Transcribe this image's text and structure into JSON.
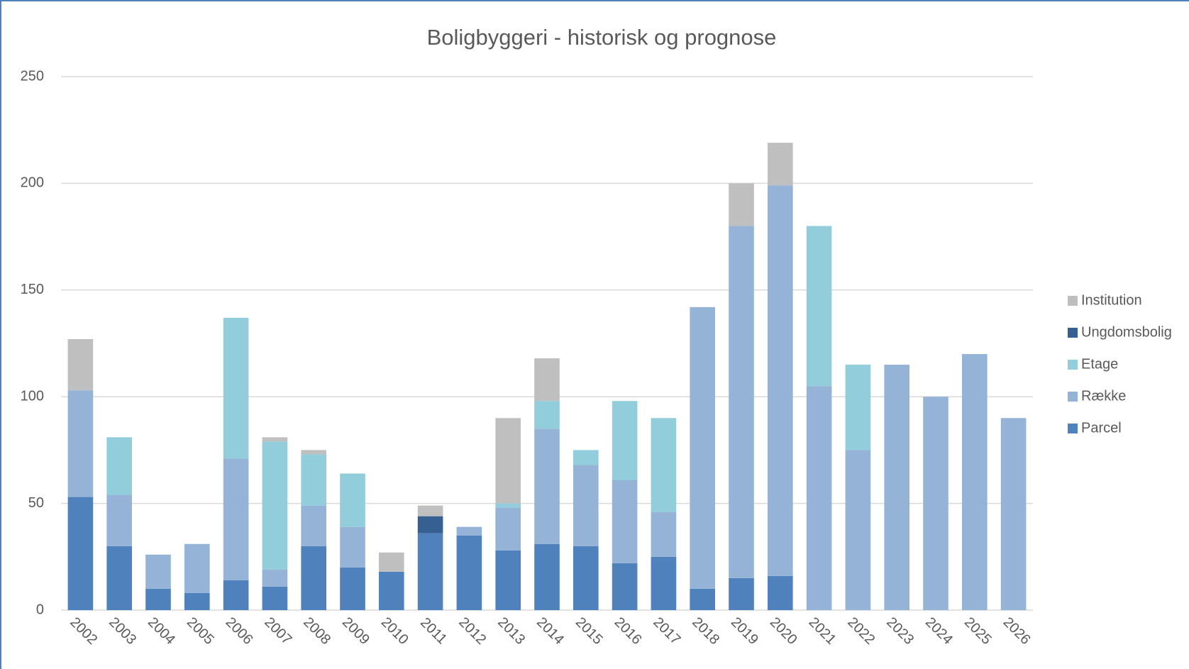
{
  "chart_data": {
    "type": "stacked_bar",
    "title": "Boligbyggeri - historisk og prognose",
    "categories": [
      "2002",
      "2003",
      "2004",
      "2005",
      "2006",
      "2007",
      "2008",
      "2009",
      "2010",
      "2011",
      "2012",
      "2013",
      "2014",
      "2015",
      "2016",
      "2017",
      "2018",
      "2019",
      "2020",
      "2021",
      "2022",
      "2023",
      "2024",
      "2025",
      "2026"
    ],
    "series": [
      {
        "name": "Parcel",
        "color": "#4f81bd",
        "values": [
          53,
          30,
          10,
          8,
          14,
          11,
          30,
          20,
          18,
          36,
          35,
          28,
          31,
          30,
          22,
          25,
          10,
          15,
          16,
          0,
          0,
          0,
          0,
          0,
          0
        ]
      },
      {
        "name": "Række",
        "color": "#95b3d7",
        "values": [
          50,
          24,
          16,
          23,
          57,
          8,
          19,
          19,
          0,
          0,
          4,
          20,
          54,
          38,
          39,
          21,
          132,
          165,
          183,
          105,
          75,
          115,
          100,
          120,
          90
        ]
      },
      {
        "name": "Etage",
        "color": "#92cddc",
        "values": [
          0,
          27,
          0,
          0,
          66,
          60,
          24,
          25,
          0,
          0,
          0,
          2,
          13,
          7,
          37,
          44,
          0,
          0,
          0,
          75,
          40,
          0,
          0,
          0,
          0
        ]
      },
      {
        "name": "Ungdomsbolig",
        "color": "#366092",
        "values": [
          0,
          0,
          0,
          0,
          0,
          0,
          0,
          0,
          0,
          8,
          0,
          0,
          0,
          0,
          0,
          0,
          0,
          0,
          0,
          0,
          0,
          0,
          0,
          0,
          0
        ]
      },
      {
        "name": "Institution",
        "color": "#bfbfbf",
        "values": [
          24,
          0,
          0,
          0,
          0,
          2,
          2,
          0,
          9,
          5,
          0,
          40,
          20,
          0,
          0,
          0,
          0,
          20,
          20,
          0,
          0,
          0,
          0,
          0,
          0
        ]
      }
    ],
    "ylim": [
      0,
      250
    ],
    "yticks": [
      0,
      50,
      100,
      150,
      200,
      250
    ],
    "grid": true,
    "legend": "right"
  }
}
